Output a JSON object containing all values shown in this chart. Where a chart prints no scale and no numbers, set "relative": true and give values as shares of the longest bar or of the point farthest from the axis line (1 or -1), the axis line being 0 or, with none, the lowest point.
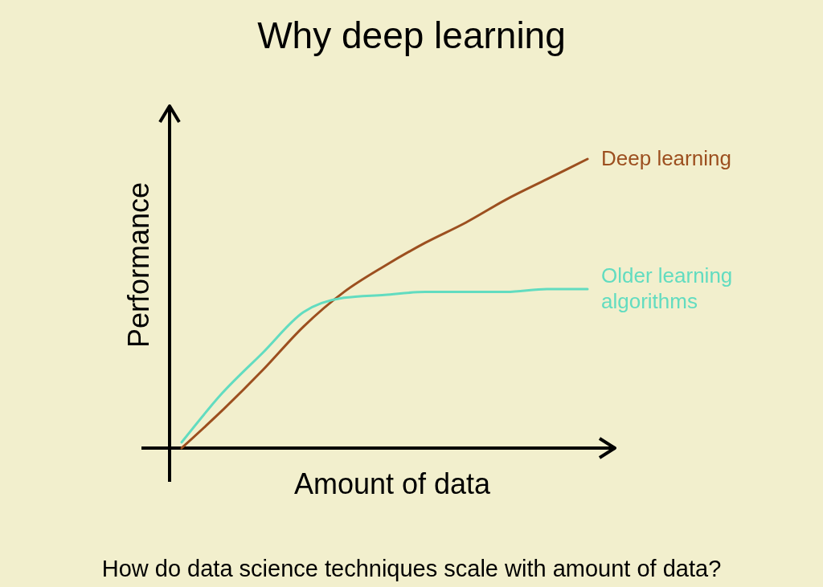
{
  "chart_data": {
    "type": "line",
    "title": "Why deep learning",
    "xlabel": "Amount of data",
    "ylabel": "Performance",
    "annotations": [
      "How do data science techniques scale with amount of data?"
    ],
    "relative": true,
    "legend": false,
    "grid": false,
    "marker": "none",
    "line_style": "solid",
    "categories": [
      null,
      null,
      null,
      null,
      null,
      null,
      null,
      null,
      null,
      null,
      null
    ],
    "series": [
      {
        "name": "Deep learning",
        "color": "#9c4f1f",
        "values": [
          0,
          0.13,
          0.27,
          0.42,
          0.54,
          0.63,
          0.71,
          0.78,
          0.86,
          0.93,
          1
        ]
      },
      {
        "name": "Older learning algorithms",
        "color": "#62dcc0",
        "values": [
          0.02,
          0.19,
          0.33,
          0.47,
          0.52,
          0.53,
          0.54,
          0.54,
          0.54,
          0.55,
          0.55
        ]
      }
    ]
  }
}
